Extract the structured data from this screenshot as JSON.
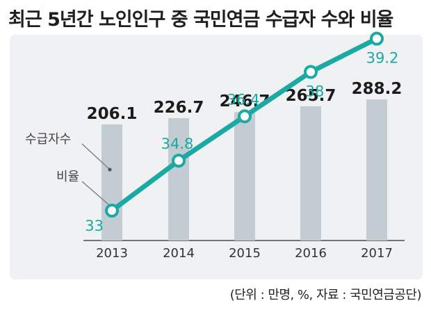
{
  "title": "최근 5년간 노인인구 중 국민연금 수급자 수와 비율",
  "source": "(단위 : 만명, %, 자료 : 국민연금공단)",
  "colors": {
    "bar": "#c4ccd3",
    "line": "#1aa9a3",
    "panel": "#f0f1f3",
    "legend_leader": "#7a7a7a"
  },
  "chart_data": {
    "type": "bar",
    "categories": [
      "2013",
      "2014",
      "2015",
      "2016",
      "2017"
    ],
    "series": [
      {
        "name": "수급자수",
        "type": "bar",
        "values": [
          206.1,
          226.7,
          246.7,
          265.7,
          288.2
        ]
      },
      {
        "name": "비율",
        "type": "line",
        "values": [
          33,
          34.8,
          36.4,
          38,
          39.2
        ]
      }
    ],
    "value_labels": {
      "bar": [
        "206.1",
        "226.7",
        "246.7",
        "265.7",
        "288.2"
      ],
      "line": [
        "33",
        "34.8",
        "36.4",
        "38",
        "39.2"
      ]
    },
    "legend": [
      "수급자수",
      "비율"
    ],
    "legend_position": "left, with leader lines",
    "grid": false
  }
}
